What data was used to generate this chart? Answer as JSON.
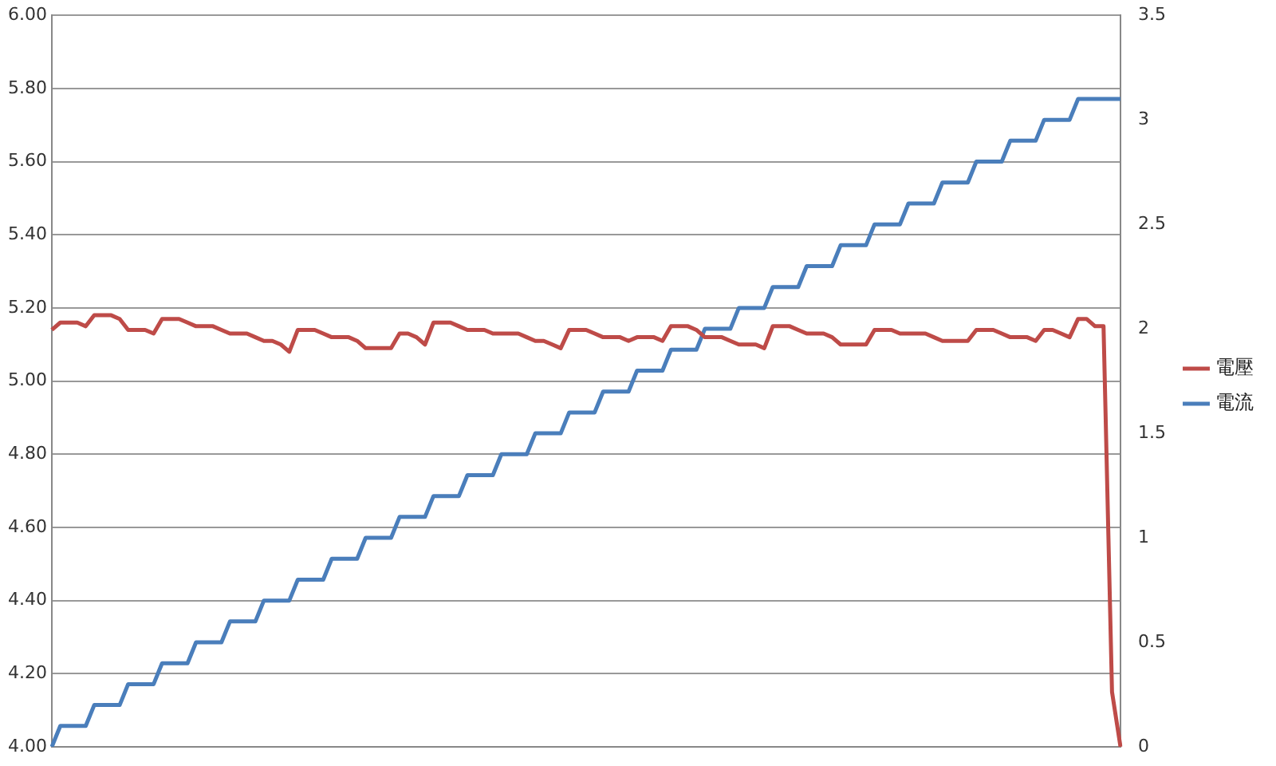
{
  "chart_data": {
    "type": "line",
    "categories": [
      null,
      null,
      null,
      null,
      null,
      null,
      null,
      null,
      null,
      null,
      null,
      null,
      null,
      null,
      null,
      null,
      null,
      null,
      null,
      null,
      null,
      null,
      null,
      null,
      null,
      null,
      null,
      null,
      null,
      null,
      null,
      null,
      null,
      null,
      null,
      null,
      null,
      null,
      null,
      null,
      null,
      null,
      null,
      null,
      null,
      null,
      null,
      null,
      null,
      null,
      null,
      null,
      null,
      null,
      null,
      null,
      null,
      null,
      null,
      null,
      null,
      null,
      null,
      null,
      null,
      null,
      null,
      null,
      null,
      null,
      null,
      null,
      null,
      null,
      null,
      null,
      null,
      null,
      null,
      null,
      null,
      null,
      null,
      null,
      null,
      null,
      null,
      null,
      null,
      null,
      null,
      null,
      null,
      null,
      null,
      null,
      null,
      null,
      null,
      null,
      null,
      null,
      null,
      null,
      null,
      null,
      null,
      null,
      null,
      null,
      null,
      null,
      null,
      null,
      null,
      null,
      null,
      null,
      null,
      null,
      null,
      null,
      null,
      null,
      null,
      null,
      null
    ],
    "series": [
      {
        "name": "電壓",
        "color": "#be4b48",
        "values": [
          5.14,
          5.16,
          5.16,
          5.16,
          5.15,
          5.18,
          5.18,
          5.18,
          5.17,
          5.14,
          5.14,
          5.14,
          5.13,
          5.17,
          5.17,
          5.17,
          5.16,
          5.15,
          5.15,
          5.15,
          5.14,
          5.13,
          5.13,
          5.13,
          5.12,
          5.11,
          5.11,
          5.1,
          5.08,
          5.14,
          5.14,
          5.14,
          5.13,
          5.12,
          5.12,
          5.12,
          5.11,
          5.09,
          5.09,
          5.09,
          5.09,
          5.13,
          5.13,
          5.12,
          5.1,
          5.16,
          5.16,
          5.16,
          5.15,
          5.14,
          5.14,
          5.14,
          5.13,
          5.13,
          5.13,
          5.13,
          5.12,
          5.11,
          5.11,
          5.1,
          5.09,
          5.14,
          5.14,
          5.14,
          5.13,
          5.12,
          5.12,
          5.12,
          5.11,
          5.12,
          5.12,
          5.12,
          5.11,
          5.15,
          5.15,
          5.15,
          5.14,
          5.12,
          5.12,
          5.12,
          5.11,
          5.1,
          5.1,
          5.1,
          5.09,
          5.15,
          5.15,
          5.15,
          5.14,
          5.13,
          5.13,
          5.13,
          5.12,
          5.1,
          5.1,
          5.1,
          5.1,
          5.14,
          5.14,
          5.14,
          5.13,
          5.13,
          5.13,
          5.13,
          5.12,
          5.11,
          5.11,
          5.11,
          5.11,
          5.14,
          5.14,
          5.14,
          5.13,
          5.12,
          5.12,
          5.12,
          5.11,
          5.14,
          5.14,
          5.13,
          5.12,
          5.17,
          5.17,
          5.15,
          5.15,
          4.15,
          4.0
        ]
      },
      {
        "name": "電流",
        "color": "#4a7ebb",
        "axis": "y2",
        "values": [
          0,
          0.1,
          0.1,
          0.1,
          0.1,
          0.2,
          0.2,
          0.2,
          0.2,
          0.3,
          0.3,
          0.3,
          0.3,
          0.4,
          0.4,
          0.4,
          0.4,
          0.5,
          0.5,
          0.5,
          0.5,
          0.6,
          0.6,
          0.6,
          0.6,
          0.7,
          0.7,
          0.7,
          0.7,
          0.8,
          0.8,
          0.8,
          0.8,
          0.9,
          0.9,
          0.9,
          0.9,
          1.0,
          1.0,
          1.0,
          1.0,
          1.1,
          1.1,
          1.1,
          1.1,
          1.2,
          1.2,
          1.2,
          1.2,
          1.3,
          1.3,
          1.3,
          1.3,
          1.4,
          1.4,
          1.4,
          1.4,
          1.5,
          1.5,
          1.5,
          1.5,
          1.6,
          1.6,
          1.6,
          1.6,
          1.7,
          1.7,
          1.7,
          1.7,
          1.8,
          1.8,
          1.8,
          1.8,
          1.9,
          1.9,
          1.9,
          1.9,
          2.0,
          2.0,
          2.0,
          2.0,
          2.1,
          2.1,
          2.1,
          2.1,
          2.2,
          2.2,
          2.2,
          2.2,
          2.3,
          2.3,
          2.3,
          2.3,
          2.4,
          2.4,
          2.4,
          2.4,
          2.5,
          2.5,
          2.5,
          2.5,
          2.6,
          2.6,
          2.6,
          2.6,
          2.7,
          2.7,
          2.7,
          2.7,
          2.8,
          2.8,
          2.8,
          2.8,
          2.9,
          2.9,
          2.9,
          2.9,
          3.0,
          3.0,
          3.0,
          3.0,
          3.1,
          3.1,
          3.1,
          3.1,
          3.1,
          3.1
        ]
      }
    ],
    "ylim": [
      4,
      6
    ],
    "yticks": [
      {
        "value": 4,
        "label": "4.00"
      },
      {
        "value": 4.2,
        "label": "4.20"
      },
      {
        "value": 4.4,
        "label": "4.40"
      },
      {
        "value": 4.6,
        "label": "4.60"
      },
      {
        "value": 4.8,
        "label": "4.80"
      },
      {
        "value": 5,
        "label": "5.00"
      },
      {
        "value": 5.2,
        "label": "5.20"
      },
      {
        "value": 5.4,
        "label": "5.40"
      },
      {
        "value": 5.6,
        "label": "5.60"
      },
      {
        "value": 5.8,
        "label": "5.80"
      },
      {
        "value": 6,
        "label": "6.00"
      }
    ],
    "y2lim": [
      0,
      3.5
    ],
    "y2ticks": [
      0,
      0.5,
      1,
      1.5,
      2,
      2.5,
      3,
      3.5
    ],
    "grid": "y",
    "legend": "right",
    "marker": "none",
    "line_style": "solid"
  }
}
